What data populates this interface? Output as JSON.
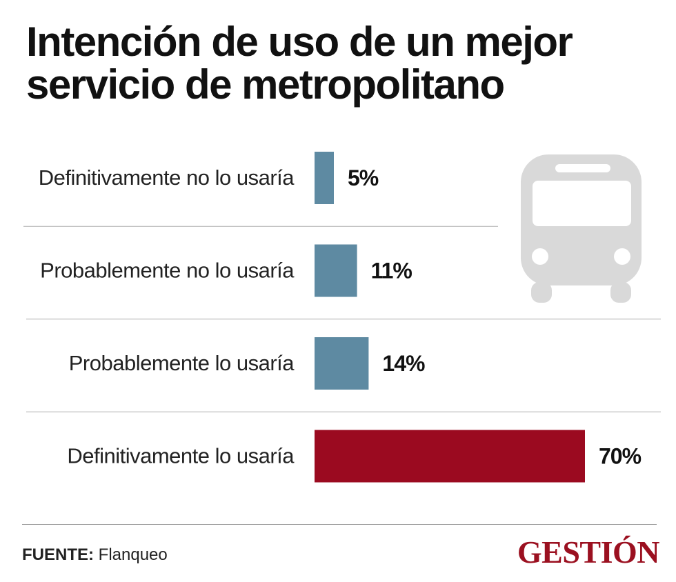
{
  "title": {
    "line1": "Intención de uso de un mejor",
    "line2": "servicio de metropolitano"
  },
  "chart_data": {
    "type": "bar",
    "orientation": "horizontal",
    "title": "Intención de uso de un mejor servicio de metropolitano",
    "categories": [
      "Definitivamente no lo usaría",
      "Probablemente no lo usaría",
      "Probablemente lo usaría",
      "Definitivamente lo usaría"
    ],
    "values": [
      5,
      11,
      14,
      70
    ],
    "value_labels": [
      "5%",
      "11%",
      "14%",
      "70%"
    ],
    "unit": "%",
    "xlim": [
      0,
      70
    ],
    "colors": [
      "#5e8aa2",
      "#5e8aa2",
      "#5e8aa2",
      "#9b0a20"
    ],
    "xlabel": "",
    "ylabel": ""
  },
  "footer": {
    "source_label": "FUENTE:",
    "source_value": "Flanqueo",
    "logo": "GESTIÓN"
  },
  "icons": {
    "illustration": "bus-icon"
  }
}
